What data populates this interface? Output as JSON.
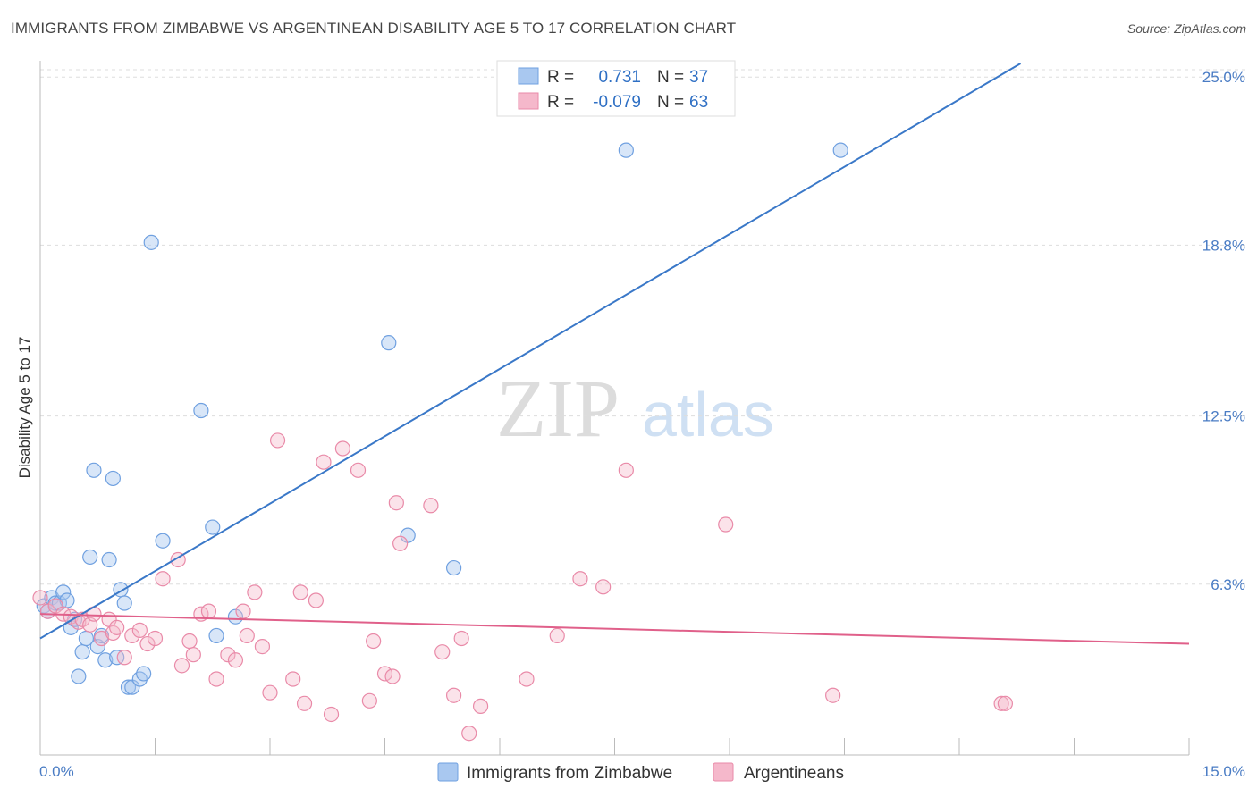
{
  "title": "IMMIGRANTS FROM ZIMBABWE VS ARGENTINEAN DISABILITY AGE 5 TO 17 CORRELATION CHART",
  "source": "Source: ZipAtlas.com",
  "watermark": {
    "zip": "ZIP",
    "atlas": "atlas"
  },
  "legend": {
    "r_label": "R =",
    "n_label": "N =",
    "rows": [
      {
        "r": "0.731",
        "n": "37",
        "color": "#a9c8f0"
      },
      {
        "r": "-0.079",
        "n": "63",
        "color": "#f5b8cb"
      }
    ]
  },
  "chart_data": {
    "type": "scatter",
    "title": "IMMIGRANTS FROM ZIMBABWE VS ARGENTINEAN DISABILITY AGE 5 TO 17 CORRELATION CHART",
    "xlabel": "",
    "ylabel": "Disability Age 5 to 17",
    "xlim": [
      0,
      15
    ],
    "ylim": [
      0,
      25.6
    ],
    "x_ticks": [
      "0.0%",
      "15.0%"
    ],
    "y_ticks": [
      {
        "value": 6.3,
        "label": "6.3%"
      },
      {
        "value": 12.5,
        "label": "12.5%"
      },
      {
        "value": 18.8,
        "label": "18.8%"
      },
      {
        "value": 25.0,
        "label": "25.0%"
      }
    ],
    "grid": "horizontal dashed",
    "legend_position": "top-center",
    "series": [
      {
        "name": "Immigrants from Zimbabwe",
        "color": "#6fa0e0",
        "fill": "rgba(169,200,240,0.45)",
        "trend": {
          "x0": 0.0,
          "y0": 4.3,
          "x1": 12.8,
          "y1": 25.5,
          "color": "#3a78c8"
        },
        "points": [
          [
            0.05,
            5.5
          ],
          [
            0.1,
            5.3
          ],
          [
            0.15,
            5.8
          ],
          [
            0.2,
            5.6
          ],
          [
            0.25,
            5.6
          ],
          [
            0.3,
            6.0
          ],
          [
            0.35,
            5.7
          ],
          [
            0.4,
            4.7
          ],
          [
            0.45,
            5.0
          ],
          [
            0.5,
            2.9
          ],
          [
            0.55,
            3.8
          ],
          [
            0.6,
            4.3
          ],
          [
            0.65,
            7.3
          ],
          [
            0.7,
            10.5
          ],
          [
            0.75,
            4.0
          ],
          [
            0.8,
            4.4
          ],
          [
            0.85,
            3.5
          ],
          [
            0.9,
            7.2
          ],
          [
            0.95,
            10.2
          ],
          [
            1.0,
            3.6
          ],
          [
            1.05,
            6.1
          ],
          [
            1.1,
            5.6
          ],
          [
            1.15,
            2.5
          ],
          [
            1.2,
            2.5
          ],
          [
            1.3,
            2.8
          ],
          [
            1.35,
            3.0
          ],
          [
            1.45,
            18.9
          ],
          [
            1.6,
            7.9
          ],
          [
            2.1,
            12.7
          ],
          [
            2.25,
            8.4
          ],
          [
            2.3,
            4.4
          ],
          [
            2.55,
            5.1
          ],
          [
            4.55,
            15.2
          ],
          [
            4.8,
            8.1
          ],
          [
            5.4,
            6.9
          ],
          [
            7.65,
            22.3
          ],
          [
            10.45,
            22.3
          ]
        ]
      },
      {
        "name": "Argentineans",
        "color": "#e98aa8",
        "fill": "rgba(245,184,203,0.40)",
        "trend": {
          "x0": 0.0,
          "y0": 5.2,
          "x1": 15.0,
          "y1": 4.1,
          "color": "#e0608a"
        },
        "points": [
          [
            0.0,
            5.8
          ],
          [
            0.1,
            5.3
          ],
          [
            0.2,
            5.5
          ],
          [
            0.3,
            5.2
          ],
          [
            0.4,
            5.1
          ],
          [
            0.5,
            4.9
          ],
          [
            0.55,
            5.0
          ],
          [
            0.65,
            4.8
          ],
          [
            0.7,
            5.2
          ],
          [
            0.8,
            4.3
          ],
          [
            0.9,
            5.0
          ],
          [
            0.95,
            4.5
          ],
          [
            1.0,
            4.7
          ],
          [
            1.1,
            3.6
          ],
          [
            1.2,
            4.4
          ],
          [
            1.3,
            4.6
          ],
          [
            1.4,
            4.1
          ],
          [
            1.5,
            4.3
          ],
          [
            1.6,
            6.5
          ],
          [
            1.8,
            7.2
          ],
          [
            1.85,
            3.3
          ],
          [
            1.95,
            4.2
          ],
          [
            2.0,
            3.7
          ],
          [
            2.1,
            5.2
          ],
          [
            2.2,
            5.3
          ],
          [
            2.3,
            2.8
          ],
          [
            2.45,
            3.7
          ],
          [
            2.55,
            3.5
          ],
          [
            2.65,
            5.3
          ],
          [
            2.7,
            4.4
          ],
          [
            2.8,
            6.0
          ],
          [
            2.9,
            4.0
          ],
          [
            3.0,
            2.3
          ],
          [
            3.1,
            11.6
          ],
          [
            3.3,
            2.8
          ],
          [
            3.4,
            6.0
          ],
          [
            3.45,
            1.9
          ],
          [
            3.6,
            5.7
          ],
          [
            3.7,
            10.8
          ],
          [
            3.8,
            1.5
          ],
          [
            3.95,
            11.3
          ],
          [
            4.15,
            10.5
          ],
          [
            4.3,
            2.0
          ],
          [
            4.35,
            4.2
          ],
          [
            4.5,
            3.0
          ],
          [
            4.6,
            2.9
          ],
          [
            4.65,
            9.3
          ],
          [
            4.7,
            7.8
          ],
          [
            5.1,
            9.2
          ],
          [
            5.25,
            3.8
          ],
          [
            5.4,
            2.2
          ],
          [
            5.5,
            4.3
          ],
          [
            5.6,
            0.8
          ],
          [
            5.75,
            1.8
          ],
          [
            6.35,
            2.8
          ],
          [
            6.75,
            4.4
          ],
          [
            7.05,
            6.5
          ],
          [
            7.35,
            6.2
          ],
          [
            7.65,
            10.5
          ],
          [
            8.95,
            8.5
          ],
          [
            10.35,
            2.2
          ],
          [
            12.55,
            1.9
          ],
          [
            12.6,
            1.9
          ]
        ]
      }
    ]
  },
  "bottom_legend": [
    {
      "label": "Immigrants from Zimbabwe",
      "color": "#a9c8f0",
      "border": "#6fa0e0"
    },
    {
      "label": "Argentineans",
      "color": "#f5b8cb",
      "border": "#e98aa8"
    }
  ]
}
